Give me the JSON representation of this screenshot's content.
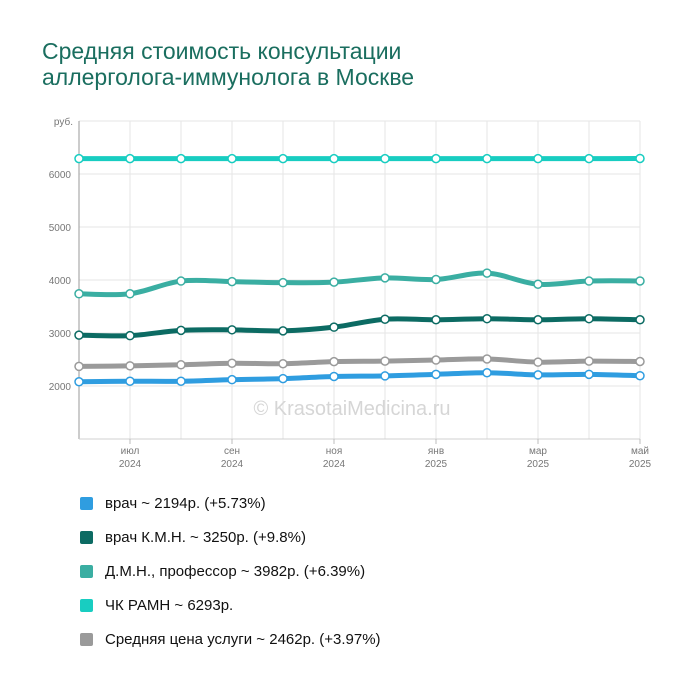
{
  "chart_data": {
    "type": "line",
    "title": "Средняя стоимость консультации аллерголога-иммунолога в Москве",
    "title_lines": [
      "Средняя стоимость консультации",
      "аллерголога-иммунолога в Москве"
    ],
    "ylabel": "руб.",
    "ylim": [
      1000,
      7000
    ],
    "yticks": [
      "2000",
      "3000",
      "4000",
      "5000",
      "6000"
    ],
    "x": [
      "2024-06",
      "2024-07",
      "2024-08",
      "2024-09",
      "2024-10",
      "2024-11",
      "2024-12",
      "2025-01",
      "2025-02",
      "2025-03",
      "2025-04",
      "2025-05"
    ],
    "xtick_labels": [
      {
        "x": "2024-07",
        "month": "июл",
        "year": "2024"
      },
      {
        "x": "2024-09",
        "month": "сен",
        "year": "2024"
      },
      {
        "x": "2024-11",
        "month": "ноя",
        "year": "2024"
      },
      {
        "x": "2025-01",
        "month": "янв",
        "year": "2025"
      },
      {
        "x": "2025-03",
        "month": "мар",
        "year": "2025"
      },
      {
        "x": "2025-05",
        "month": "май",
        "year": "2025"
      }
    ],
    "grid": true,
    "legend_position": "bottom",
    "watermark": "© KrasotaiMedicina.ru",
    "series": [
      {
        "name": "ЧК РАМН ~ 6293р.",
        "color": "#18cdc1",
        "values": [
          6290,
          6290,
          6290,
          6290,
          6290,
          6290,
          6290,
          6290,
          6290,
          6290,
          6290,
          6293
        ]
      },
      {
        "name": "Д.М.Н., профессор ~ 3982р. (+6.39%)",
        "color": "#3aaea2",
        "values": [
          3740,
          3740,
          3980,
          3970,
          3950,
          3960,
          4040,
          4010,
          4130,
          3920,
          3980,
          3982
        ]
      },
      {
        "name": "врач К.М.Н. ~ 3250р. (+9.8%)",
        "color": "#0c6b63",
        "values": [
          2960,
          2950,
          3050,
          3060,
          3040,
          3110,
          3260,
          3250,
          3270,
          3250,
          3270,
          3250
        ]
      },
      {
        "name": "Средняя цена услуги ~ 2462р. (+3.97%)",
        "color": "#9a9a9a",
        "values": [
          2370,
          2380,
          2400,
          2430,
          2420,
          2460,
          2470,
          2490,
          2510,
          2450,
          2470,
          2462
        ]
      },
      {
        "name": "врач ~ 2194р. (+5.73%)",
        "color": "#2f9de0",
        "values": [
          2080,
          2090,
          2090,
          2120,
          2140,
          2180,
          2190,
          2220,
          2250,
          2210,
          2220,
          2194
        ]
      }
    ]
  },
  "legend": [
    {
      "label": "врач ~ 2194р. (+5.73%)",
      "color": "#2f9de0"
    },
    {
      "label": "врач К.М.Н. ~ 3250р. (+9.8%)",
      "color": "#0c6b63"
    },
    {
      "label": "Д.М.Н., профессор ~ 3982р. (+6.39%)",
      "color": "#3aaea2"
    },
    {
      "label": "ЧК РАМН ~ 6293р.",
      "color": "#18cdc1"
    },
    {
      "label": "Средняя цена услуги ~ 2462р. (+3.97%)",
      "color": "#9a9a9a"
    }
  ]
}
